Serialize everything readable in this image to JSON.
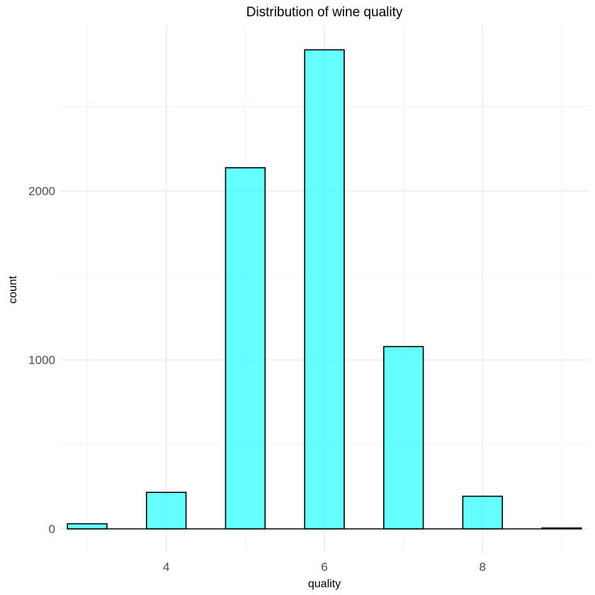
{
  "chart_data": {
    "type": "bar",
    "title": "Distribution of wine quality",
    "xlabel": "quality",
    "ylabel": "count",
    "categories": [
      3,
      4,
      5,
      6,
      7,
      8,
      9
    ],
    "values": [
      30,
      216,
      2138,
      2836,
      1079,
      193,
      5
    ],
    "x_ticks": [
      "4",
      "6",
      "8"
    ],
    "x_tick_values": [
      4,
      6,
      8
    ],
    "y_ticks": [
      "0",
      "1000",
      "2000"
    ],
    "y_tick_values": [
      0,
      1000,
      2000
    ],
    "xlim": [
      2.65,
      9.35
    ],
    "ylim": [
      -140,
      2980
    ],
    "grid": true,
    "legend": "none",
    "colors": {
      "bar_fill": "#00FFFF",
      "bar_fill_opacity": "0.6",
      "bar_stroke": "#000000",
      "grid_major": "#ebebeb",
      "grid_minor": "#f3f3f3"
    }
  }
}
